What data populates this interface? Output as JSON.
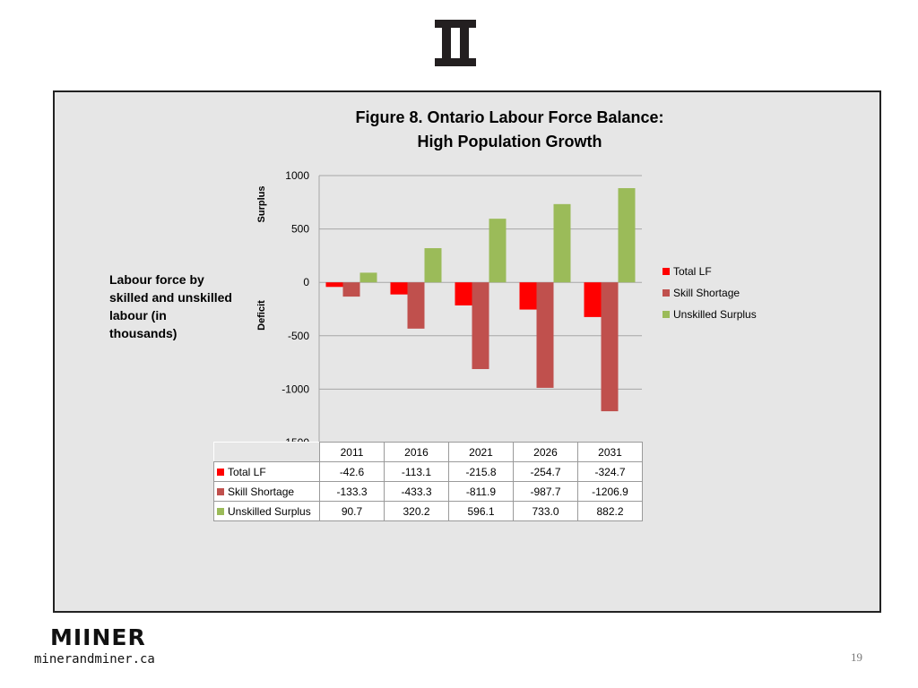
{
  "slide": {
    "side_note": "Labour force by skilled and unskilled labour (in thousands)",
    "brand_name": "MIINER",
    "brand_url": "minerandminer.ca",
    "page_number": "19"
  },
  "chart_data": {
    "type": "bar",
    "title_line1": "Figure 8. Ontario Labour Force Balance:",
    "title_line2": "High Population Growth",
    "ylabel_positive": "Surplus",
    "ylabel_negative": "Deficit",
    "categories": [
      "2011",
      "2016",
      "2021",
      "2026",
      "2031"
    ],
    "series": [
      {
        "name": "Total LF",
        "color": "#ff0000",
        "values": [
          -42.6,
          -113.1,
          -215.8,
          -254.7,
          -324.7
        ]
      },
      {
        "name": "Skill Shortage",
        "color": "#c0504d",
        "values": [
          -133.3,
          -433.3,
          -811.9,
          -987.7,
          -1206.9
        ]
      },
      {
        "name": "Unskilled Surplus",
        "color": "#9bbb59",
        "values": [
          90.7,
          320.2,
          596.1,
          733.0,
          882.2
        ]
      }
    ],
    "table_values": [
      [
        "-42.6",
        "-113.1",
        "-215.8",
        "-254.7",
        "-324.7"
      ],
      [
        "-133.3",
        "-433.3",
        "-811.9",
        "-987.7",
        "-1206.9"
      ],
      [
        "90.7",
        "320.2",
        "596.1",
        "733.0",
        "882.2"
      ]
    ],
    "yticks": [
      "1000",
      "500",
      "0",
      "-500",
      "-1000",
      "-1500"
    ],
    "ylim": [
      -1500,
      1000
    ],
    "grid": true,
    "legend": "right"
  }
}
